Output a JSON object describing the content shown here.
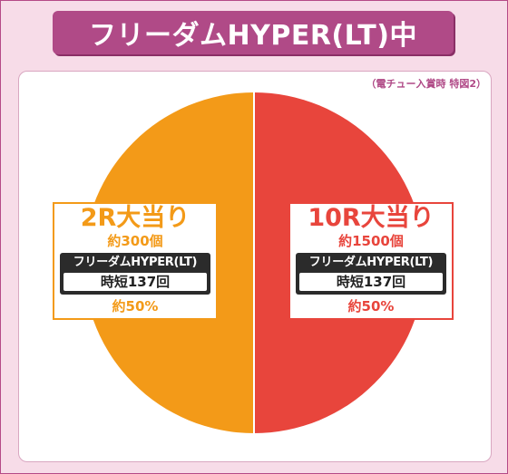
{
  "title": "フリーダムHYPER(LT)中",
  "note": "（電チュー入賞時 特図2）",
  "chart_data": {
    "type": "pie",
    "title": "フリーダムHYPER(LT)中",
    "slices": [
      {
        "label": "2R大当り",
        "payout": "約300個",
        "mode": "フリーダムHYPER(LT)",
        "detail": "時短137回",
        "percent_text": "約50%",
        "value": 50,
        "color": "#f39a18"
      },
      {
        "label": "10R大当り",
        "payout": "約1500個",
        "mode": "フリーダムHYPER(LT)",
        "detail": "時短137回",
        "percent_text": "約50%",
        "value": 50,
        "color": "#e8453c"
      }
    ]
  }
}
